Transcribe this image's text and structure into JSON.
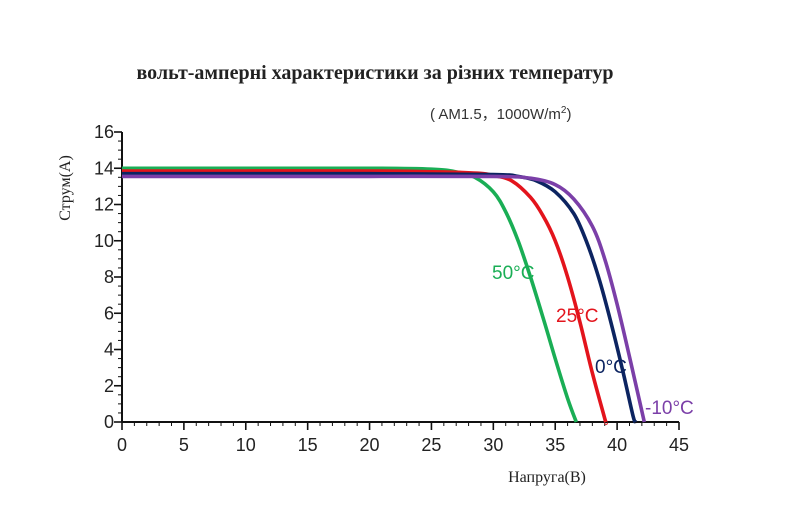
{
  "chart_data": {
    "type": "line",
    "title": "вольт-амперні характеристики за різних температур",
    "subtitle": {
      "prefix": "( AM1.5，1000W/m",
      "superscript": "2",
      "suffix": ")"
    },
    "xlabel": "Напруга(В)",
    "ylabel": "Струм(A)",
    "xlim": [
      0,
      45
    ],
    "ylim": [
      0,
      16
    ],
    "xticks": [
      0,
      5,
      10,
      15,
      20,
      25,
      30,
      35,
      40,
      45
    ],
    "yticks": [
      0,
      2,
      4,
      6,
      8,
      10,
      12,
      14,
      16
    ],
    "grid": false,
    "legend": "none (inline labels near curves)",
    "series": [
      {
        "name": "50°C",
        "color": "#1aae55",
        "x": [
          0,
          10,
          20,
          25,
          27,
          28.5,
          30,
          31,
          32,
          33,
          34,
          35,
          36,
          36.7
        ],
        "y": [
          14.0,
          14.0,
          14.0,
          13.95,
          13.8,
          13.5,
          12.7,
          11.6,
          10.0,
          8.0,
          5.8,
          3.5,
          1.3,
          0
        ]
      },
      {
        "name": "25°C",
        "color": "#e3141c",
        "x": [
          0,
          10,
          20,
          28,
          30,
          31.5,
          33,
          34,
          35,
          36,
          37,
          38,
          39,
          39.1
        ],
        "y": [
          13.85,
          13.85,
          13.85,
          13.75,
          13.6,
          13.3,
          12.4,
          11.4,
          10.0,
          8.0,
          5.5,
          2.7,
          0.2,
          0
        ]
      },
      {
        "name": "0°C",
        "color": "#0c2461",
        "x": [
          0,
          10,
          20,
          30,
          32,
          33.5,
          35,
          36.5,
          37.5,
          38.5,
          39.5,
          40.5,
          41.3,
          41.5
        ],
        "y": [
          13.7,
          13.7,
          13.7,
          13.65,
          13.55,
          13.3,
          12.7,
          11.5,
          10.0,
          8.0,
          5.5,
          2.7,
          0.3,
          0
        ]
      },
      {
        "name": "-10°C",
        "color": "#7b3fa8",
        "x": [
          0,
          10,
          20,
          30,
          33,
          35,
          36.5,
          38,
          39,
          40,
          41,
          41.8,
          42.2
        ],
        "y": [
          13.55,
          13.55,
          13.55,
          13.55,
          13.45,
          13.1,
          12.3,
          10.8,
          9.0,
          6.5,
          3.6,
          1.2,
          0
        ]
      }
    ]
  }
}
